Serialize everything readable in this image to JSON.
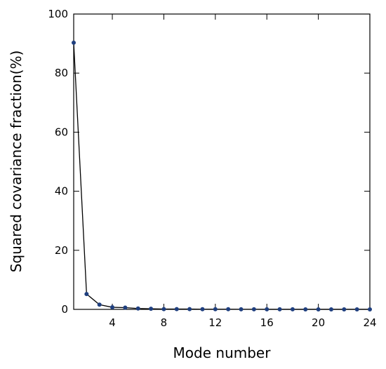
{
  "chart_data": {
    "type": "line",
    "x_label": "Mode number",
    "y_label": "Squared covariance fraction(%)",
    "x": [
      1,
      2,
      3,
      4,
      5,
      6,
      7,
      8,
      9,
      10,
      11,
      12,
      13,
      14,
      15,
      16,
      17,
      18,
      19,
      20,
      21,
      22,
      23,
      24
    ],
    "series": [
      {
        "name": "Squared covariance fraction",
        "color": "#1f3f7f",
        "line_color": "#000000",
        "values": [
          90.3,
          5.2,
          1.6,
          0.7,
          0.6,
          0.3,
          0.2,
          0.1,
          0.1,
          0.1,
          0.05,
          0.05,
          0.05,
          0.03,
          0.03,
          0.02,
          0.02,
          0.02,
          0.01,
          0.01,
          0.01,
          0.01,
          0.01,
          0.01
        ]
      }
    ],
    "xlim": [
      1,
      24
    ],
    "xticks": [
      4,
      8,
      12,
      16,
      20,
      24
    ],
    "ylim": [
      0,
      100
    ],
    "yticks": [
      0,
      20,
      40,
      60,
      80,
      100
    ]
  }
}
